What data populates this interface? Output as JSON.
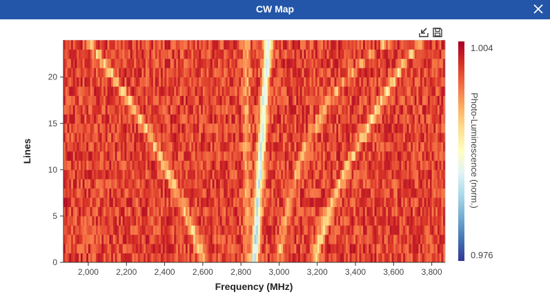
{
  "window": {
    "title": "CW Map",
    "close_icon": "close-icon"
  },
  "toolbar": {
    "export_icon": "export-icon",
    "save_icon": "save-icon"
  },
  "colors": {
    "titlebar": "#2356a8",
    "title_text": "#ffffff"
  },
  "chart_data": {
    "type": "heatmap",
    "title": "",
    "xlabel": "Frequency (MHz)",
    "ylabel": "Lines",
    "xlim": [
      1870,
      3870
    ],
    "ylim": [
      0,
      24
    ],
    "x_ticks": [
      "2,000",
      "2,200",
      "2,400",
      "2,600",
      "2,800",
      "3,000",
      "3,200",
      "3,400",
      "3,600",
      "3,800"
    ],
    "y_ticks": [
      "0",
      "5",
      "10",
      "15",
      "20"
    ],
    "colorbar": {
      "label": "Photo-Luminescence (norm.)",
      "max_label": "1.004",
      "min_label": "0.976",
      "min": 0.976,
      "max": 1.004,
      "colorscale": [
        "#313695",
        "#4575b4",
        "#74add1",
        "#abd9e9",
        "#e0f3f8",
        "#ffffbf",
        "#fee090",
        "#fdae61",
        "#f46d43",
        "#d73027",
        "#a50026"
      ]
    },
    "lines": 24,
    "background_level": 1.0,
    "dips": [
      {
        "name": "",
        "points": [
          [
            2000,
            24
          ],
          [
            2100,
            21
          ],
          [
            2200,
            18
          ],
          [
            2300,
            14.5
          ],
          [
            2400,
            10.5
          ],
          [
            2500,
            6
          ],
          [
            2590,
            1
          ],
          [
            2600,
            0
          ]
        ],
        "depth": 0.006
      },
      {
        "name": "",
        "points": [
          [
            2830,
            0
          ],
          [
            2830,
            24
          ]
        ],
        "depth": 0.004
      },
      {
        "name": "",
        "points": [
          [
            2870,
            0
          ],
          [
            2900,
            10
          ],
          [
            2930,
            20
          ],
          [
            2945,
            24
          ]
        ],
        "depth": 0.014
      },
      {
        "name": "",
        "points": [
          [
            2990,
            0
          ],
          [
            3070,
            8
          ],
          [
            3150,
            13
          ],
          [
            3250,
            17
          ],
          [
            3350,
            20
          ],
          [
            3450,
            22
          ],
          [
            3550,
            23.5
          ]
        ],
        "depth": 0.005
      },
      {
        "name": "",
        "points": [
          [
            3180,
            0
          ],
          [
            3250,
            5
          ],
          [
            3350,
            10
          ],
          [
            3450,
            14
          ],
          [
            3550,
            18
          ],
          [
            3650,
            21.5
          ],
          [
            3760,
            24
          ]
        ],
        "depth": 0.007
      }
    ]
  }
}
